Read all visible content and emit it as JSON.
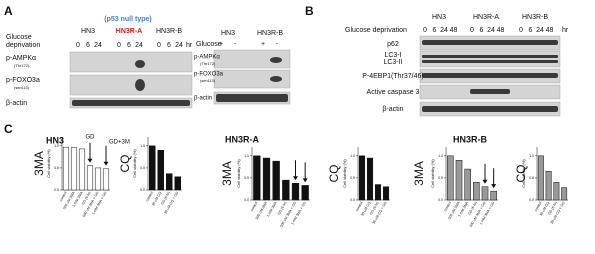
{
  "panel_a": {
    "label": "A",
    "subtitle": "(p53 null type)",
    "condition": [
      "Glucose",
      "deprivation"
    ],
    "unit": "hr",
    "groups": [
      {
        "name": "HN3",
        "times": [
          "0",
          "6",
          "24"
        ]
      },
      {
        "name": "HN3R-A",
        "times": [
          "0",
          "6",
          "24"
        ]
      },
      {
        "name": "HN3R-B",
        "times": [
          "0",
          "6",
          "24"
        ]
      }
    ],
    "rows": [
      {
        "name": "p-AMPKα",
        "site": "(Thr172)"
      },
      {
        "name": "p-FOXO3a",
        "site": "(ser413)"
      },
      {
        "name": "β-actin"
      }
    ]
  },
  "panel_a_right": {
    "condition": "Glucose",
    "groups": [
      {
        "name": "HN3",
        "signs": [
          "+",
          "-"
        ]
      },
      {
        "name": "HN3R-B",
        "signs": [
          "+",
          "-"
        ]
      }
    ],
    "rows": [
      {
        "name": "p-AMPKα",
        "site": "(Thr172)"
      },
      {
        "name": "p-FOXO3a",
        "site": "(ser413)"
      },
      {
        "name": "β-actin"
      }
    ]
  },
  "panel_b": {
    "label": "B",
    "condition": "Glucose deprivation",
    "unit": "hr",
    "groups": [
      {
        "name": "HN3",
        "times": [
          "0",
          "6",
          "24",
          "48"
        ]
      },
      {
        "name": "HN3R-A",
        "times": [
          "0",
          "6",
          "24",
          "48"
        ]
      },
      {
        "name": "HN3R-B",
        "times": [
          "0",
          "6",
          "24",
          "48"
        ]
      }
    ],
    "rows": [
      "p62",
      "LC3-I",
      "LC3-II",
      "P-4EBP1(Thr37/46)",
      "Active caspase 3",
      "β-actin"
    ]
  },
  "panel_c": {
    "label": "C"
  },
  "chart_data": [
    {
      "type": "bar",
      "title": "HN3",
      "drug_label": "3MA",
      "y_label": "Cell viability (%)",
      "color": "#ffffff",
      "annotations": [
        "GD",
        "GD+3M"
      ],
      "categories": [
        "control",
        "500 uM 3MA",
        "1 mM 3MA",
        "GD (6 hr)",
        "500 uM 3MA + GD",
        "1 mM 3MA + GD"
      ],
      "values": [
        0.97,
        0.96,
        0.93,
        0.55,
        0.5,
        0.48
      ],
      "ylim": [
        0,
        1.2
      ],
      "yticks": [
        {
          "value": 0,
          "label": "0.0"
        },
        {
          "value": 0.5,
          "label": "0.5"
        },
        {
          "value": 1,
          "label": "1.0"
        }
      ]
    },
    {
      "type": "bar",
      "drug_label": "CQ",
      "y_label": "Cell viability (%)",
      "color": "#111111",
      "categories": [
        "control",
        "30 uM CQ",
        "GD (6 hr)",
        "30 uM CQ + GD"
      ],
      "values": [
        1.0,
        0.9,
        0.37,
        0.3
      ],
      "ylim": [
        0,
        1.2
      ],
      "yticks": [
        {
          "value": 0,
          "label": "0.0"
        },
        {
          "value": 0.5,
          "label": "0.5"
        },
        {
          "value": 1,
          "label": "1.0"
        }
      ]
    },
    {
      "type": "bar",
      "title": "HN3R-A",
      "drug_label": "3MA",
      "y_label": "Cell viability (%)",
      "color": "#111111",
      "categories": [
        "control",
        "500 uM 3MA",
        "1 mM 3MA",
        "GD (6 hr)",
        "500 uM 3MA + GD",
        "1 mM 3MA + GD"
      ],
      "values": [
        1.0,
        0.95,
        0.88,
        0.45,
        0.38,
        0.33
      ],
      "ylim": [
        0,
        1.2
      ],
      "yticks": [
        {
          "value": 0,
          "label": "0.0"
        },
        {
          "value": 0.5,
          "label": "0.5"
        },
        {
          "value": 1,
          "label": "1.0"
        }
      ]
    },
    {
      "type": "bar",
      "drug_label": "CQ",
      "y_label": "Cell viability (%)",
      "color": "#111111",
      "categories": [
        "control",
        "30 uM CQ",
        "GD (6 hr)",
        "30 uM CQ + GD"
      ],
      "values": [
        1.0,
        0.95,
        0.35,
        0.3
      ],
      "ylim": [
        0,
        1.2
      ],
      "yticks": [
        {
          "value": 0,
          "label": "0.0"
        },
        {
          "value": 0.5,
          "label": "0.5"
        },
        {
          "value": 1,
          "label": "1.0"
        }
      ]
    },
    {
      "type": "bar",
      "title": "HN3R-B",
      "drug_label": "3MA",
      "y_label": "Cell viability (%)",
      "color": "#999999",
      "categories": [
        "control",
        "500 uM 3MA",
        "1 mM 3MA",
        "GD (6 hr)",
        "500 uM 3MA + GD",
        "1 mM 3MA + GD"
      ],
      "values": [
        1.0,
        0.9,
        0.7,
        0.4,
        0.3,
        0.2
      ],
      "ylim": [
        0,
        1.2
      ],
      "yticks": [
        {
          "value": 0,
          "label": "0.0"
        },
        {
          "value": 0.5,
          "label": "0.5"
        },
        {
          "value": 1,
          "label": "1.0"
        }
      ]
    },
    {
      "type": "bar",
      "drug_label": "CQ",
      "y_label": "Cell viability (%)",
      "color": "#999999",
      "categories": [
        "control",
        "30 uM CQ",
        "GD (6 hr)",
        "30 uM CQ + GD"
      ],
      "values": [
        1.0,
        0.65,
        0.4,
        0.28
      ],
      "ylim": [
        0,
        1.2
      ],
      "yticks": [
        {
          "value": 0,
          "label": "0.0"
        },
        {
          "value": 0.5,
          "label": "0.5"
        },
        {
          "value": 1,
          "label": "1.0"
        }
      ]
    }
  ]
}
